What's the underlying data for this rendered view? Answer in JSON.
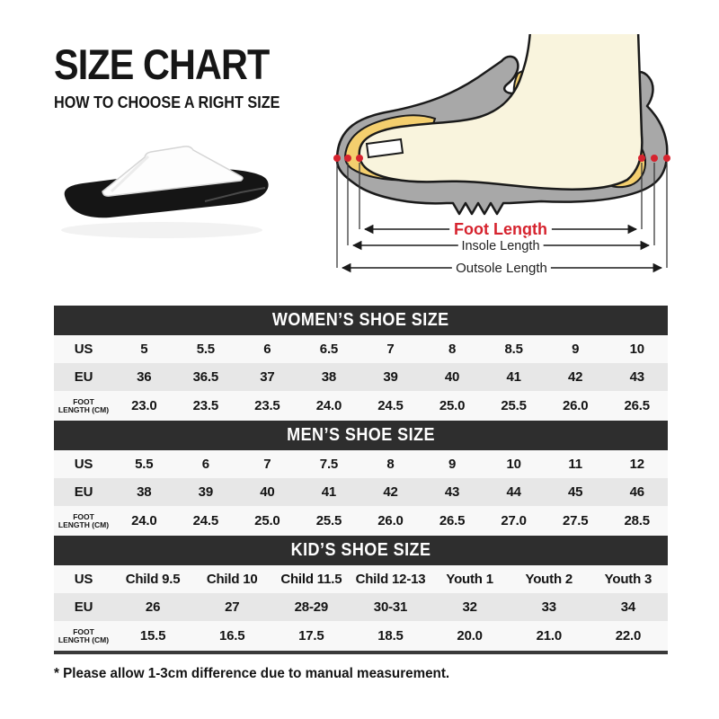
{
  "header": {
    "title": "SIZE CHART",
    "subtitle": "HOW TO CHOOSE A RIGHT SIZE"
  },
  "diagram": {
    "foot_length_label": "Foot Length",
    "insole_length_label": "Insole Length",
    "outsole_length_label": "Outsole Length",
    "colors": {
      "accent_red": "#d6232e",
      "shoe_gray": "#a8a8a8",
      "insole_yellow": "#f4cf6e",
      "foot_cream": "#f9f4dd",
      "outline_black": "#1a1a1a"
    }
  },
  "product_image": {
    "alt": "white-strap-black-sole-slide-sandal"
  },
  "tables": [
    {
      "title": "WOMEN’S SHOE SIZE",
      "rows": [
        {
          "label_lines": [
            "US"
          ],
          "values": [
            "5",
            "5.5",
            "6",
            "6.5",
            "7",
            "8",
            "8.5",
            "9",
            "10"
          ]
        },
        {
          "label_lines": [
            "EU"
          ],
          "values": [
            "36",
            "36.5",
            "37",
            "38",
            "39",
            "40",
            "41",
            "42",
            "43"
          ]
        },
        {
          "label_lines": [
            "FOOT",
            "LENGTH (CM)"
          ],
          "values": [
            "23.0",
            "23.5",
            "23.5",
            "24.0",
            "24.5",
            "25.0",
            "25.5",
            "26.0",
            "26.5"
          ]
        }
      ]
    },
    {
      "title": "MEN’S SHOE SIZE",
      "rows": [
        {
          "label_lines": [
            "US"
          ],
          "values": [
            "5.5",
            "6",
            "7",
            "7.5",
            "8",
            "9",
            "10",
            "11",
            "12"
          ]
        },
        {
          "label_lines": [
            "EU"
          ],
          "values": [
            "38",
            "39",
            "40",
            "41",
            "42",
            "43",
            "44",
            "45",
            "46"
          ]
        },
        {
          "label_lines": [
            "FOOT",
            "LENGTH (CM)"
          ],
          "values": [
            "24.0",
            "24.5",
            "25.0",
            "25.5",
            "26.0",
            "26.5",
            "27.0",
            "27.5",
            "28.5"
          ]
        }
      ]
    },
    {
      "title": "KID’S SHOE SIZE",
      "rows": [
        {
          "label_lines": [
            "US"
          ],
          "values": [
            "Child 9.5",
            "Child 10",
            "Child 11.5",
            "Child 12-13",
            "Youth 1",
            "Youth 2",
            "Youth 3"
          ]
        },
        {
          "label_lines": [
            "EU"
          ],
          "values": [
            "26",
            "27",
            "28-29",
            "30-31",
            "32",
            "33",
            "34"
          ]
        },
        {
          "label_lines": [
            "FOOT",
            "LENGTH (CM)"
          ],
          "values": [
            "15.5",
            "16.5",
            "17.5",
            "18.5",
            "20.0",
            "21.0",
            "22.0"
          ]
        }
      ]
    }
  ],
  "footnote": "* Please allow 1-3cm difference due to manual measurement."
}
